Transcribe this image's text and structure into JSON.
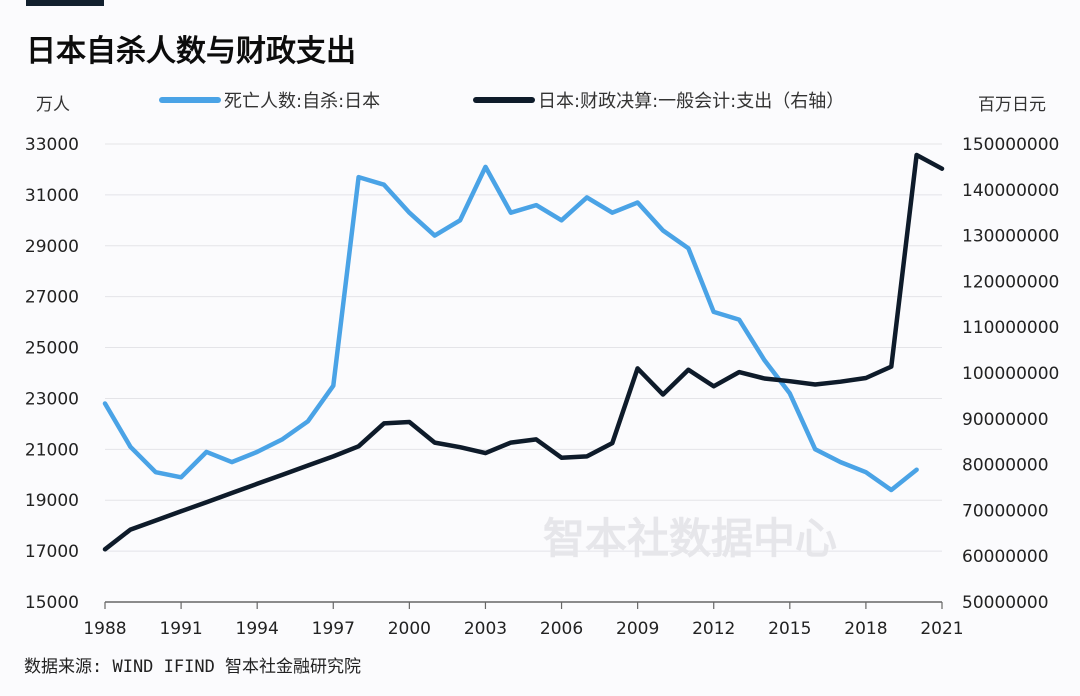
{
  "title": "日本自杀人数与财政支出",
  "source": "数据来源: WIND IFIND 智本社金融研究院",
  "watermark": "智本社数据中心",
  "chart_data": {
    "type": "line",
    "colors": {
      "suicide": "#4aa3e6",
      "expenditure": "#0e1b2a"
    },
    "left_unit": "万人",
    "right_unit": "百万日元",
    "ylim_left": [
      15000,
      33000
    ],
    "ylim_right": [
      50000000,
      150000000
    ],
    "left_ticks": [
      15000,
      17000,
      19000,
      21000,
      23000,
      25000,
      27000,
      29000,
      31000,
      33000
    ],
    "right_ticks": [
      50000000,
      60000000,
      70000000,
      80000000,
      90000000,
      100000000,
      110000000,
      120000000,
      130000000,
      140000000,
      150000000
    ],
    "x_ticks": [
      1988,
      1991,
      1994,
      1997,
      2000,
      2003,
      2006,
      2009,
      2012,
      2015,
      2018,
      2021
    ],
    "xlim": [
      1988,
      2021
    ],
    "grid": true,
    "legend_position": "top",
    "series": [
      {
        "key": "suicide",
        "name": "死亡人数:自杀:日本",
        "axis": "left",
        "x": [
          1988,
          1989,
          1990,
          1991,
          1992,
          1993,
          1994,
          1995,
          1996,
          1997,
          1998,
          1999,
          2000,
          2001,
          2002,
          2003,
          2004,
          2005,
          2006,
          2007,
          2008,
          2009,
          2010,
          2011,
          2012,
          2013,
          2014,
          2015,
          2016,
          2017,
          2018,
          2019,
          2020
        ],
        "values": [
          22800,
          21100,
          20100,
          19900,
          20900,
          20500,
          20900,
          21400,
          22100,
          23500,
          31700,
          31400,
          30300,
          29400,
          30000,
          32100,
          30300,
          30600,
          30000,
          30900,
          30300,
          30700,
          29600,
          28900,
          26400,
          26100,
          24500,
          23200,
          21000,
          20500,
          20100,
          19400,
          20200
        ]
      },
      {
        "key": "expenditure",
        "name": "日本:财政决算:一般会计:支出（右轴）",
        "axis": "right",
        "x": [
          1988,
          1989,
          1990,
          1991,
          1992,
          1993,
          1994,
          1995,
          1996,
          1997,
          1998,
          1999,
          2000,
          2001,
          2002,
          2003,
          2004,
          2005,
          2006,
          2007,
          2008,
          2009,
          2010,
          2011,
          2012,
          2013,
          2014,
          2015,
          2016,
          2017,
          2018,
          2019,
          2020,
          2021
        ],
        "values": [
          61500000,
          65800000,
          67800000,
          69800000,
          71800000,
          73800000,
          75800000,
          77800000,
          79800000,
          81800000,
          84000000,
          89000000,
          89300000,
          84800000,
          83800000,
          82500000,
          84800000,
          85500000,
          81500000,
          81800000,
          84700000,
          101000000,
          95300000,
          100700000,
          97100000,
          100200000,
          98800000,
          98200000,
          97500000,
          98100000,
          98900000,
          101400000,
          147600000,
          144600000
        ]
      }
    ]
  }
}
